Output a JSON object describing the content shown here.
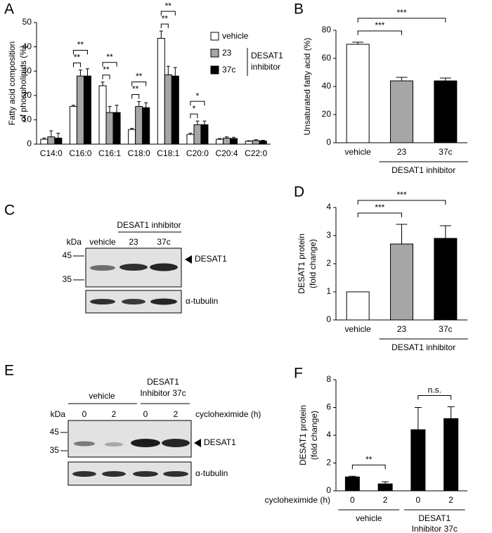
{
  "chart_data": [
    {
      "type": "grouped_bar",
      "label": "A",
      "ylabel": [
        "Fatty acid composition",
        "of phospholipids (%)"
      ],
      "categories": [
        "C14:0",
        "C16:0",
        "C16:1",
        "C18:0",
        "C18:1",
        "C20:0",
        "C20:4",
        "C22:0"
      ],
      "series": [
        {
          "name": "vehicle",
          "color": "#ffffff",
          "values": [
            2,
            15.5,
            24,
            6,
            43.5,
            4,
            2,
            1.2
          ],
          "errors": [
            0.5,
            0.5,
            1.5,
            0.5,
            3,
            0.5,
            0.3,
            0.2
          ]
        },
        {
          "name": "23",
          "color": "#a6a6a6",
          "values": [
            3,
            28,
            13,
            15.5,
            28.5,
            8,
            2.5,
            1.5
          ],
          "errors": [
            2.5,
            2.5,
            2.5,
            2,
            3.5,
            1.5,
            0.5,
            0.3
          ]
        },
        {
          "name": "37c",
          "color": "#000000",
          "values": [
            2.5,
            28,
            13,
            15,
            28,
            8,
            2.3,
            1.3
          ],
          "errors": [
            2,
            3,
            3,
            2,
            3.5,
            1.5,
            0.5,
            0.3
          ]
        }
      ],
      "legend_group": {
        "label": [
          "DESAT1",
          "inhibitor"
        ],
        "series": [
          1,
          2
        ]
      },
      "ylim": [
        0,
        50
      ],
      "yticks": [
        0,
        10,
        20,
        30,
        40,
        50
      ],
      "brackets": [
        {
          "category": 1,
          "series": [
            0,
            1
          ],
          "label": "**"
        },
        {
          "category": 1,
          "series": [
            0,
            2
          ],
          "label": "**"
        },
        {
          "category": 2,
          "series": [
            0,
            1
          ],
          "label": "**"
        },
        {
          "category": 2,
          "series": [
            0,
            2
          ],
          "label": "**"
        },
        {
          "category": 3,
          "series": [
            0,
            1
          ],
          "label": "**"
        },
        {
          "category": 3,
          "series": [
            0,
            2
          ],
          "label": "**"
        },
        {
          "category": 4,
          "series": [
            0,
            1
          ],
          "label": "**"
        },
        {
          "category": 4,
          "series": [
            0,
            2
          ],
          "label": "**"
        },
        {
          "category": 5,
          "series": [
            0,
            1
          ],
          "label": "*"
        },
        {
          "category": 5,
          "series": [
            0,
            2
          ],
          "label": "*"
        }
      ]
    },
    {
      "type": "bar",
      "label": "B",
      "ylabel": [
        "Unsaturated fatty acid  (%)"
      ],
      "categories": [
        "vehicle",
        "23",
        "37c"
      ],
      "values": [
        70,
        44,
        44
      ],
      "errors": [
        1.5,
        2.5,
        2
      ],
      "colors": [
        "#ffffff",
        "#a6a6a6",
        "#000000"
      ],
      "ylim": [
        0,
        80
      ],
      "yticks": [
        0,
        20,
        40,
        60,
        80
      ],
      "group_labels": [
        {
          "label": [
            "DESAT1 inhibitor"
          ],
          "categories": [
            1,
            2
          ]
        }
      ],
      "brackets": [
        {
          "categories": [
            0,
            1
          ],
          "label": "***"
        },
        {
          "categories": [
            0,
            2
          ],
          "label": "***"
        }
      ]
    },
    {
      "type": "bar",
      "label": "D",
      "ylabel": [
        "DESAT1 protein",
        "(fold change)"
      ],
      "categories": [
        "vehicle",
        "23",
        "37c"
      ],
      "values": [
        1,
        2.7,
        2.9
      ],
      "errors": [
        0,
        0.7,
        0.45
      ],
      "colors": [
        "#ffffff",
        "#a6a6a6",
        "#000000"
      ],
      "ylim": [
        0,
        4
      ],
      "yticks": [
        0,
        1,
        2,
        3,
        4
      ],
      "group_labels": [
        {
          "label": [
            "DESAT1 inhibitor"
          ],
          "categories": [
            1,
            2
          ]
        }
      ],
      "brackets": [
        {
          "categories": [
            0,
            1
          ],
          "label": "***"
        },
        {
          "categories": [
            0,
            2
          ],
          "label": "***"
        }
      ]
    },
    {
      "type": "bar",
      "label": "F",
      "ylabel": [
        "DESAT1 protein",
        "(fold change)"
      ],
      "x_title": "cycloheximide (h)",
      "categories": [
        "0",
        "2",
        "0",
        "2"
      ],
      "values": [
        1,
        0.5,
        4.4,
        5.2
      ],
      "errors": [
        0.05,
        0.15,
        1.6,
        0.85
      ],
      "colors": [
        "#000000",
        "#000000",
        "#000000",
        "#000000"
      ],
      "ylim": [
        0,
        8
      ],
      "yticks": [
        0,
        2,
        4,
        6,
        8
      ],
      "group_labels": [
        {
          "label": [
            "vehicle"
          ],
          "categories": [
            0,
            1
          ]
        },
        {
          "label": [
            "DESAT1",
            "Inhibitor 37c"
          ],
          "categories": [
            2,
            3
          ]
        }
      ],
      "brackets": [
        {
          "categories": [
            0,
            1
          ],
          "label": "**"
        },
        {
          "categories": [
            2,
            3
          ],
          "label": "n.s."
        }
      ]
    }
  ],
  "blots": [
    {
      "label": "C",
      "header": "DESAT1 inhibitor",
      "kda": "kDa",
      "lanes": [
        "vehicle",
        "23",
        "37c"
      ],
      "markers": [
        "45",
        "35"
      ],
      "bands": [
        "DESAT1",
        "α-tubulin"
      ]
    },
    {
      "label": "E",
      "groups": [
        {
          "label": [
            "vehicle"
          ]
        },
        {
          "label": [
            "DESAT1",
            "Inhibitor 37c"
          ]
        }
      ],
      "kda": "kDa",
      "lanes": [
        "0",
        "2",
        "0",
        "2"
      ],
      "lane_title": "cycloheximide (h)",
      "markers": [
        "45",
        "35"
      ],
      "bands": [
        "DESAT1",
        "α-tubulin"
      ]
    }
  ]
}
